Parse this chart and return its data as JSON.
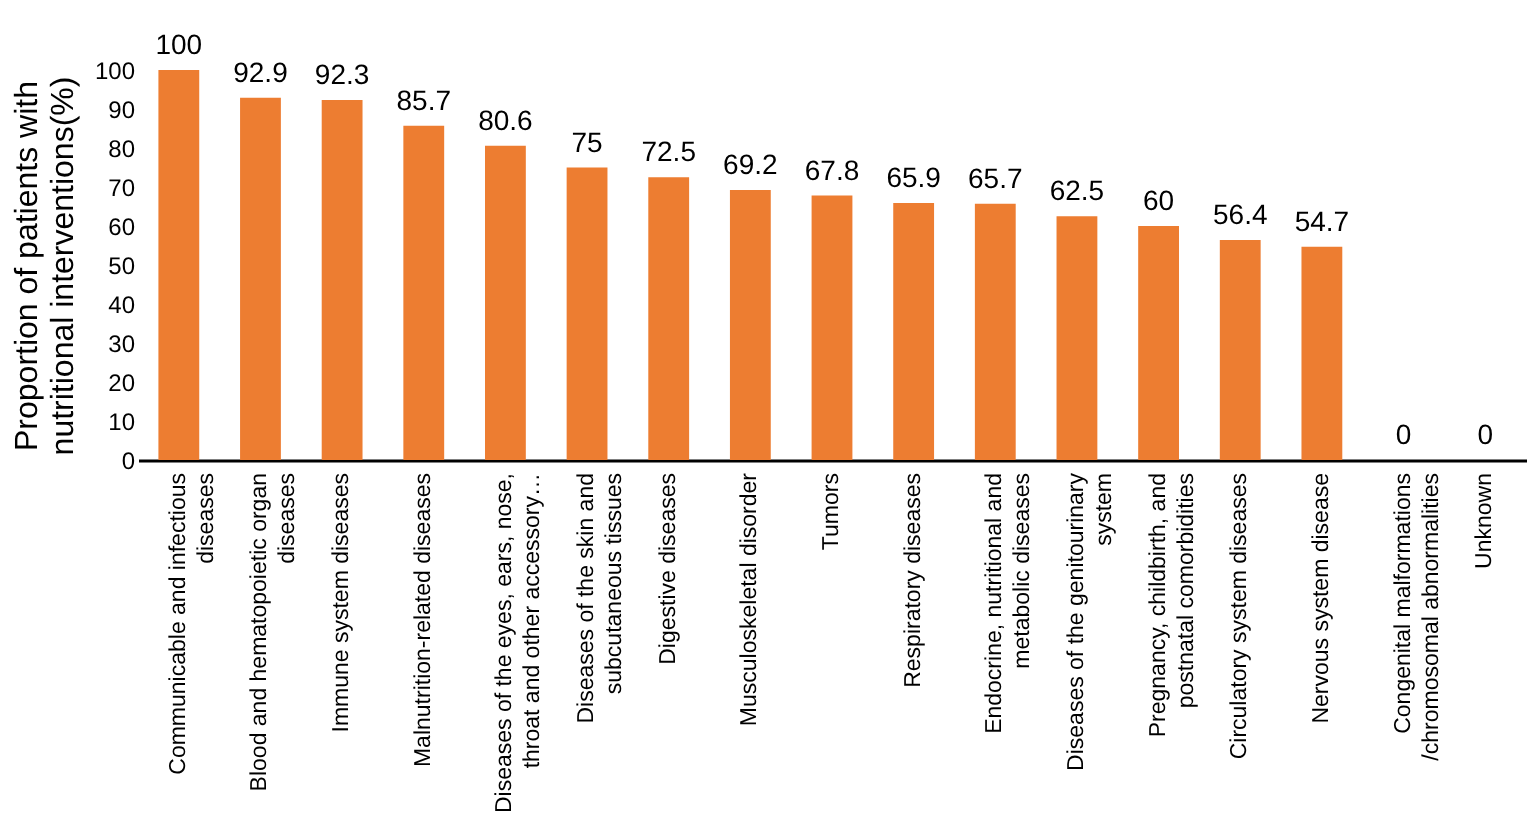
{
  "chart_data": {
    "type": "bar",
    "ylabel": "Proportion of patients with\nnutritional interventions(%)",
    "categories": [
      "Communicable and infectious\ndiseases",
      "Blood and hematopoietic organ\ndiseases",
      "Immune system diseases",
      "Malnutrition-related diseases",
      "Diseases of the eyes, ears, nose,\nthroat and other accessory…",
      "Diseases of the skin and\nsubcutaneous tissues",
      "Digestive diseases",
      "Musculoskeletal disorder",
      "Tumors",
      "Respiratory diseases",
      "Endocrine, nutritional and\nmetabolic diseases",
      "Diseases of the genitourinary\nsystem",
      "Pregnancy, childbirth, and\npostnatal comorbidities",
      "Circulatory system diseases",
      "Nervous system disease",
      "Congenital malformations\n/chromosomal abnormalities",
      "Unknown"
    ],
    "values": [
      100,
      92.9,
      92.3,
      85.7,
      80.6,
      75,
      72.5,
      69.2,
      67.8,
      65.9,
      65.7,
      62.5,
      60,
      56.4,
      54.7,
      0,
      0
    ],
    "color": "#ed7d31",
    "ylim": [
      0,
      100
    ],
    "yticks": [
      0,
      10,
      20,
      30,
      40,
      50,
      60,
      70,
      80,
      90,
      100
    ],
    "grid": false,
    "data_labels": true
  }
}
